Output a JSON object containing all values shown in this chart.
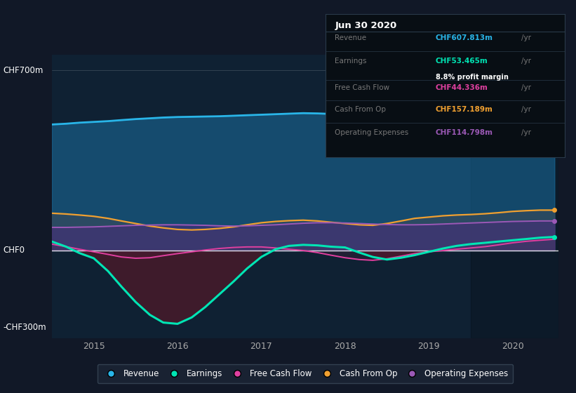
{
  "background_color": "#111827",
  "chart_area_color": "#0f2133",
  "chart_area_color_dark": "#0a1520",
  "title_box_bg": "#050a0f",
  "x_years": [
    2014.5,
    2014.67,
    2014.83,
    2015.0,
    2015.17,
    2015.33,
    2015.5,
    2015.67,
    2015.83,
    2016.0,
    2016.17,
    2016.33,
    2016.5,
    2016.67,
    2016.83,
    2017.0,
    2017.17,
    2017.33,
    2017.5,
    2017.67,
    2017.83,
    2018.0,
    2018.17,
    2018.33,
    2018.5,
    2018.67,
    2018.83,
    2019.0,
    2019.17,
    2019.33,
    2019.5,
    2019.67,
    2019.83,
    2020.0,
    2020.17,
    2020.33,
    2020.5
  ],
  "revenue": [
    490,
    493,
    497,
    500,
    503,
    507,
    511,
    514,
    517,
    519,
    520,
    521,
    522,
    524,
    526,
    528,
    530,
    532,
    534,
    533,
    531,
    529,
    530,
    533,
    537,
    541,
    546,
    551,
    556,
    561,
    566,
    572,
    580,
    588,
    596,
    603,
    608
  ],
  "earnings": [
    35,
    15,
    -10,
    -30,
    -80,
    -140,
    -200,
    -250,
    -280,
    -285,
    -260,
    -220,
    -170,
    -120,
    -70,
    -25,
    5,
    18,
    22,
    20,
    15,
    12,
    -8,
    -25,
    -35,
    -28,
    -18,
    -5,
    8,
    18,
    25,
    30,
    35,
    40,
    45,
    50,
    53
  ],
  "free_cash_flow": [
    25,
    15,
    5,
    -5,
    -15,
    -25,
    -30,
    -28,
    -20,
    -12,
    -5,
    2,
    8,
    12,
    14,
    14,
    10,
    5,
    0,
    -8,
    -18,
    -28,
    -35,
    -38,
    -32,
    -22,
    -12,
    -5,
    0,
    5,
    10,
    15,
    22,
    30,
    36,
    40,
    44
  ],
  "cash_from_op": [
    145,
    142,
    138,
    133,
    125,
    115,
    105,
    95,
    88,
    82,
    80,
    82,
    86,
    92,
    100,
    108,
    113,
    116,
    118,
    115,
    110,
    105,
    100,
    98,
    105,
    115,
    125,
    130,
    135,
    138,
    140,
    143,
    147,
    152,
    155,
    157,
    157
  ],
  "operating_expenses": [
    90,
    90,
    91,
    92,
    94,
    96,
    98,
    99,
    100,
    100,
    99,
    98,
    96,
    95,
    96,
    98,
    100,
    103,
    106,
    108,
    108,
    107,
    105,
    103,
    101,
    100,
    100,
    101,
    103,
    105,
    107,
    109,
    111,
    113,
    114,
    115,
    115
  ],
  "y_ticks": [
    700,
    0,
    -300
  ],
  "y_labels": [
    "CHF700m",
    "CHF0",
    "-CHF300m"
  ],
  "x_ticks": [
    2015,
    2016,
    2017,
    2018,
    2019,
    2020
  ],
  "ylim": [
    -340,
    760
  ],
  "xlim": [
    2014.5,
    2020.55
  ],
  "legend": [
    {
      "label": "Revenue",
      "color": "#29b5e8"
    },
    {
      "label": "Earnings",
      "color": "#00e5b4"
    },
    {
      "label": "Free Cash Flow",
      "color": "#e040a0"
    },
    {
      "label": "Cash From Op",
      "color": "#f0a030"
    },
    {
      "label": "Operating Expenses",
      "color": "#9b59b6"
    }
  ]
}
